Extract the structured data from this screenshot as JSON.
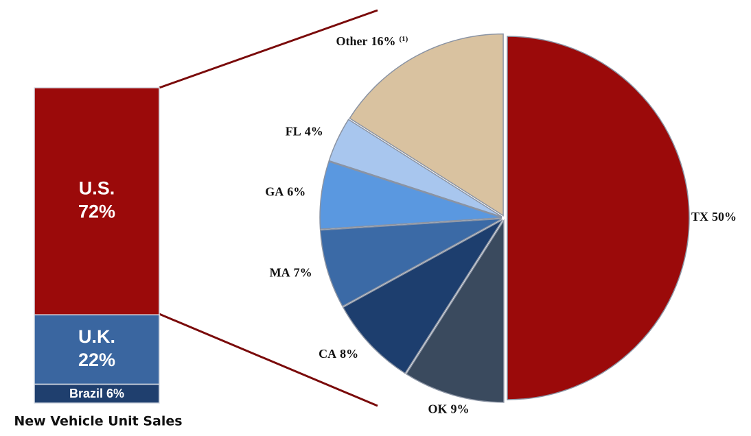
{
  "chart_data": [
    {
      "type": "stacked-bar",
      "categories": [
        "New Vehicle Unit Sales"
      ],
      "series": [
        {
          "name": "Brazil",
          "color": "#1f3f6e",
          "values": [
            6
          ],
          "value_labels": [
            "6%"
          ]
        },
        {
          "name": "U.K.",
          "color": "#3a66a0",
          "values": [
            22
          ],
          "value_labels": [
            "22%"
          ]
        },
        {
          "name": "U.S.",
          "color": "#9b0a0a",
          "values": [
            72
          ],
          "value_labels": [
            "72%"
          ]
        }
      ]
    },
    {
      "type": "pie",
      "categories": [
        "TX",
        "OK",
        "CA",
        "MA",
        "GA",
        "FL",
        "Other"
      ],
      "values": [
        50,
        9,
        8,
        7,
        6,
        4,
        16
      ],
      "value_labels": [
        "50%",
        "9%",
        "8%",
        "7%",
        "6%",
        "4%",
        "16%"
      ],
      "colors": [
        "#9b0a0a",
        "#3a4a5e",
        "#1d3e6e",
        "#3b6aa6",
        "#5a98e0",
        "#a8c6ee",
        "#d9c2a0"
      ],
      "annotation": "(1)"
    }
  ]
}
